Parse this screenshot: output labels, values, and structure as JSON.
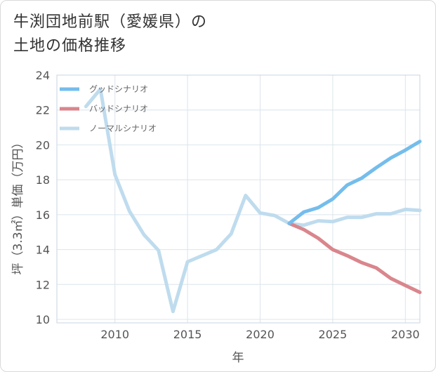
{
  "title_line1": "牛渕団地前駅（愛媛県）の",
  "title_line2": "土地の価格推移",
  "chart_data": {
    "type": "line",
    "xlabel": "年",
    "ylabel": "坪（3.3㎡）単価（万円）",
    "xlim": [
      2006,
      2031
    ],
    "ylim": [
      9.8,
      24
    ],
    "xticks": [
      2010,
      2015,
      2020,
      2025,
      2030
    ],
    "yticks": [
      10,
      12,
      14,
      16,
      18,
      20,
      22,
      24
    ],
    "legend_position": "top-left",
    "series": [
      {
        "name": "グッドシナリオ",
        "color": "#74bdec",
        "x": [
          2022,
          2023,
          2024,
          2025,
          2026,
          2027,
          2028,
          2029,
          2030,
          2031
        ],
        "y": [
          15.5,
          16.15,
          16.4,
          16.9,
          17.7,
          18.1,
          18.7,
          19.25,
          19.7,
          20.2
        ]
      },
      {
        "name": "バッドシナリオ",
        "color": "#d9868c",
        "x": [
          2022,
          2023,
          2024,
          2025,
          2026,
          2027,
          2028,
          2029,
          2030,
          2031
        ],
        "y": [
          15.5,
          15.15,
          14.65,
          14.0,
          13.65,
          13.25,
          12.95,
          12.35,
          11.95,
          11.55
        ]
      },
      {
        "name": "ノーマルシナリオ",
        "color": "#bfdcee",
        "x": [
          2008,
          2009,
          2010,
          2011,
          2012,
          2013,
          2014,
          2015,
          2016,
          2017,
          2018,
          2019,
          2020,
          2021,
          2022,
          2023,
          2024,
          2025,
          2026,
          2027,
          2028,
          2029,
          2030,
          2031
        ],
        "y": [
          22.2,
          23.2,
          18.3,
          16.2,
          14.85,
          13.95,
          10.45,
          13.3,
          13.65,
          14.0,
          14.9,
          17.1,
          16.1,
          15.95,
          15.5,
          15.4,
          15.65,
          15.6,
          15.85,
          15.85,
          16.05,
          16.05,
          16.3,
          16.25
        ]
      }
    ]
  }
}
